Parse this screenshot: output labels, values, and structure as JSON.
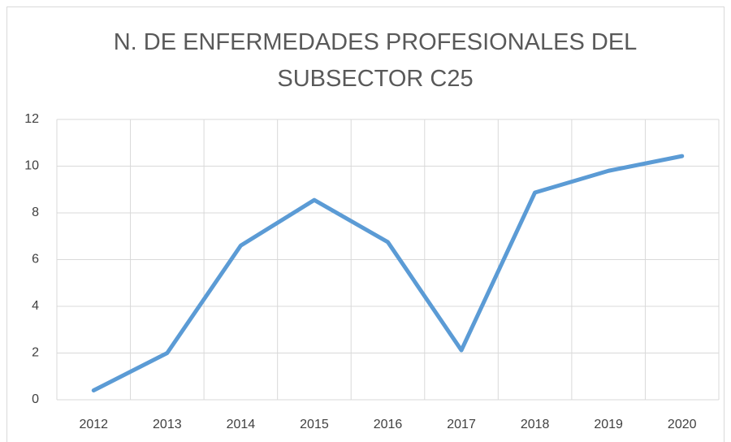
{
  "chart_data": {
    "type": "line",
    "title": "N. DE ENFERMEDADES PROFESIONALES DEL SUBSECTOR C25",
    "categories": [
      "2012",
      "2013",
      "2014",
      "2015",
      "2016",
      "2017",
      "2018",
      "2019",
      "2020"
    ],
    "values": [
      0.4,
      2,
      6.6,
      8.55,
      6.75,
      2.12,
      8.87,
      9.8,
      10.43
    ],
    "color": "#5b9bd5",
    "ylim": [
      0,
      12
    ],
    "yticks": [
      0,
      2,
      4,
      6,
      8,
      10,
      12
    ],
    "grid": true
  }
}
